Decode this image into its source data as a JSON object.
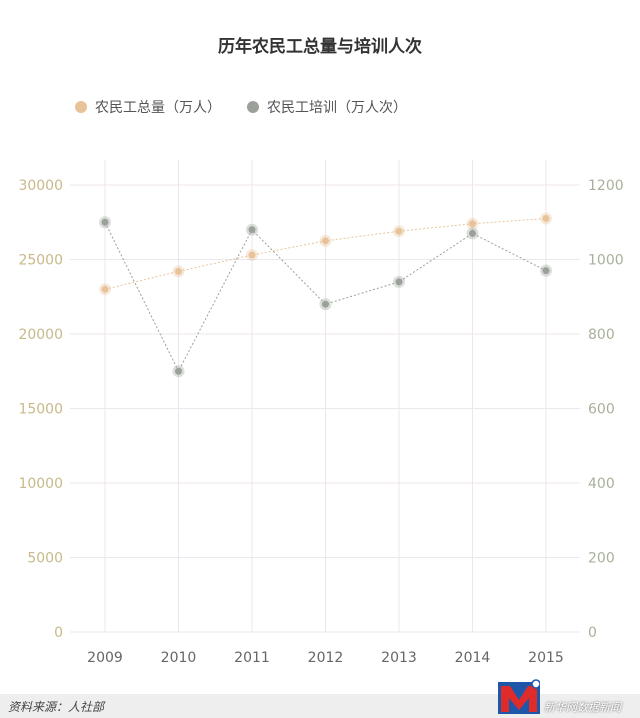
{
  "chart_data": {
    "type": "line",
    "title": "历年农民工总量与培训人次",
    "categories": [
      "2009",
      "2010",
      "2011",
      "2012",
      "2013",
      "2014",
      "2015"
    ],
    "series": [
      {
        "name": "农民工总量（万人）",
        "axis": "left",
        "color": "#e8c39a",
        "values": [
          23000,
          24200,
          25300,
          26250,
          26900,
          27400,
          27750
        ]
      },
      {
        "name": "农民工培训（万人次）",
        "axis": "right",
        "color": "#9aa198",
        "values": [
          1100,
          700,
          1080,
          880,
          940,
          1070,
          970
        ]
      }
    ],
    "y_left": {
      "ylim": [
        0,
        30000
      ],
      "ticks": [
        "0",
        "5000",
        "10000",
        "15000",
        "20000",
        "25000",
        "30000"
      ],
      "color": "#c8b98a"
    },
    "y_right": {
      "ylim": [
        0,
        1200
      ],
      "ticks": [
        "0",
        "200",
        "400",
        "600",
        "800",
        "1000",
        "1200"
      ],
      "color": "#a8b09a"
    },
    "grid": true,
    "legend": "top-left"
  },
  "footer": {
    "source": "资料来源：人社部",
    "brand": "新华网数据新闻"
  }
}
